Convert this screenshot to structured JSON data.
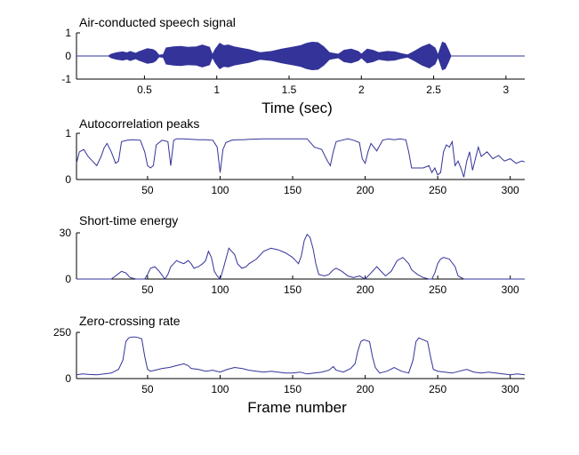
{
  "colors": {
    "series": "#333399",
    "axis": "#000000",
    "background": "#ffffff"
  },
  "chart_data": [
    {
      "type": "line",
      "title": "Air-conducted speech signal",
      "xlabel": "Time (sec)",
      "ylabel": "",
      "xlim": [
        0.03,
        3.13
      ],
      "ylim": [
        -1,
        1
      ],
      "xticks": [
        0.5,
        1,
        1.5,
        2,
        2.5,
        3
      ],
      "xtick_labels": [
        "0.5",
        "1",
        "1.5",
        "2",
        "2.5",
        "3"
      ],
      "yticks": [
        -1,
        0,
        1
      ],
      "ytick_labels": [
        "-1",
        "0",
        "1"
      ],
      "series": [
        {
          "style": "envelope",
          "x": [
            0.03,
            0.25,
            0.27,
            0.31,
            0.35,
            0.38,
            0.4,
            0.44,
            0.46,
            0.52,
            0.56,
            0.58,
            0.6,
            0.63,
            0.65,
            0.7,
            0.75,
            0.8,
            0.86,
            0.9,
            0.95,
            0.97,
            0.99,
            1.02,
            1.05,
            1.08,
            1.12,
            1.16,
            1.22,
            1.3,
            1.38,
            1.45,
            1.52,
            1.58,
            1.62,
            1.66,
            1.7,
            1.74,
            1.78,
            1.84,
            1.88,
            1.93,
            1.98,
            2.0,
            2.04,
            2.08,
            2.12,
            2.18,
            2.23,
            2.28,
            2.32,
            2.37,
            2.42,
            2.47,
            2.51,
            2.53,
            2.56,
            2.58,
            2.6,
            2.62,
            3.13
          ],
          "values": [
            0.0,
            0.0,
            0.08,
            0.15,
            0.18,
            0.14,
            0.2,
            0.12,
            0.18,
            0.32,
            0.28,
            0.2,
            0.04,
            0.06,
            0.35,
            0.4,
            0.42,
            0.38,
            0.4,
            0.48,
            0.38,
            0.06,
            0.3,
            0.55,
            0.45,
            0.48,
            0.4,
            0.35,
            0.28,
            0.15,
            0.2,
            0.3,
            0.38,
            0.45,
            0.55,
            0.6,
            0.58,
            0.4,
            0.15,
            0.08,
            0.25,
            0.3,
            0.2,
            0.08,
            0.3,
            0.25,
            0.15,
            0.2,
            0.18,
            0.1,
            0.05,
            0.22,
            0.4,
            0.52,
            0.35,
            0.05,
            0.6,
            0.55,
            0.3,
            0.0,
            0.0
          ]
        }
      ]
    },
    {
      "type": "line",
      "title": "Autocorrelation peaks",
      "xlabel": "",
      "ylabel": "",
      "xlim": [
        1,
        310
      ],
      "ylim": [
        0,
        1
      ],
      "xticks": [
        50,
        100,
        150,
        200,
        250,
        300
      ],
      "xtick_labels": [
        "50",
        "100",
        "150",
        "200",
        "250",
        "300"
      ],
      "yticks": [
        0,
        1
      ],
      "ytick_labels": [
        "0",
        "1"
      ],
      "series": [
        {
          "x": [
            1,
            3,
            6,
            9,
            12,
            15,
            18,
            20,
            22,
            25,
            28,
            30,
            32,
            36,
            40,
            45,
            48,
            50,
            52,
            54,
            56,
            60,
            64,
            66,
            68,
            70,
            75,
            80,
            85,
            90,
            95,
            98,
            100,
            102,
            104,
            108,
            112,
            116,
            120,
            130,
            140,
            150,
            160,
            165,
            170,
            174,
            176,
            178,
            180,
            184,
            188,
            192,
            196,
            198,
            200,
            202,
            204,
            208,
            212,
            216,
            220,
            224,
            228,
            230,
            232,
            234,
            236,
            240,
            244,
            246,
            248,
            250,
            252,
            254,
            256,
            258,
            260,
            262,
            264,
            266,
            268,
            270,
            272,
            274,
            276,
            278,
            280,
            284,
            288,
            292,
            296,
            300,
            304,
            308,
            310
          ],
          "values": [
            0.35,
            0.6,
            0.65,
            0.5,
            0.4,
            0.3,
            0.5,
            0.68,
            0.78,
            0.6,
            0.35,
            0.4,
            0.82,
            0.85,
            0.86,
            0.85,
            0.6,
            0.3,
            0.25,
            0.3,
            0.75,
            0.85,
            0.82,
            0.3,
            0.85,
            0.88,
            0.88,
            0.87,
            0.86,
            0.86,
            0.85,
            0.7,
            0.15,
            0.65,
            0.8,
            0.85,
            0.86,
            0.86,
            0.87,
            0.88,
            0.88,
            0.88,
            0.88,
            0.7,
            0.65,
            0.4,
            0.3,
            0.6,
            0.82,
            0.85,
            0.88,
            0.85,
            0.8,
            0.45,
            0.35,
            0.6,
            0.78,
            0.62,
            0.85,
            0.88,
            0.86,
            0.88,
            0.86,
            0.6,
            0.25,
            0.25,
            0.25,
            0.25,
            0.3,
            0.15,
            0.25,
            0.1,
            0.15,
            0.6,
            0.75,
            0.7,
            0.82,
            0.3,
            0.4,
            0.25,
            0.05,
            0.4,
            0.6,
            0.2,
            0.45,
            0.7,
            0.5,
            0.6,
            0.45,
            0.52,
            0.4,
            0.45,
            0.35,
            0.4,
            0.38
          ]
        }
      ]
    },
    {
      "type": "line",
      "title": "Short-time energy",
      "xlabel": "",
      "ylabel": "",
      "xlim": [
        1,
        310
      ],
      "ylim": [
        0,
        30
      ],
      "xticks": [
        50,
        100,
        150,
        200,
        250,
        300
      ],
      "xtick_labels": [
        "50",
        "100",
        "150",
        "200",
        "250",
        "300"
      ],
      "yticks": [
        0,
        30
      ],
      "ytick_labels": [
        "0",
        "30"
      ],
      "series": [
        {
          "x": [
            1,
            25,
            28,
            32,
            35,
            38,
            42,
            48,
            50,
            52,
            55,
            58,
            62,
            64,
            66,
            68,
            70,
            72,
            75,
            78,
            80,
            82,
            85,
            88,
            90,
            92,
            94,
            96,
            98,
            100,
            102,
            104,
            106,
            108,
            110,
            112,
            115,
            118,
            120,
            125,
            130,
            135,
            140,
            145,
            150,
            152,
            154,
            156,
            158,
            160,
            162,
            164,
            166,
            168,
            172,
            175,
            178,
            180,
            184,
            188,
            192,
            196,
            200,
            203,
            206,
            208,
            210,
            214,
            218,
            222,
            226,
            228,
            230,
            232,
            236,
            240,
            244,
            246,
            248,
            250,
            252,
            254,
            258,
            262,
            264,
            268,
            272,
            310
          ],
          "values": [
            0,
            0,
            2,
            5,
            4,
            1,
            0,
            0,
            3,
            7,
            8,
            5,
            0,
            3,
            8,
            10,
            12,
            11,
            10,
            12,
            10,
            7,
            8,
            10,
            12,
            18,
            14,
            5,
            2,
            0,
            6,
            13,
            20,
            18,
            16,
            10,
            7,
            8,
            10,
            13,
            18,
            20,
            19,
            17,
            14,
            12,
            10,
            15,
            25,
            29,
            27,
            20,
            10,
            3,
            2,
            3,
            6,
            7,
            5,
            2,
            1,
            2,
            0,
            3,
            6,
            8,
            6,
            2,
            5,
            12,
            14,
            12,
            10,
            6,
            3,
            1,
            0,
            0,
            4,
            10,
            13,
            14,
            13,
            8,
            2,
            0,
            0,
            0
          ]
        }
      ]
    },
    {
      "type": "line",
      "title": "Zero-crossing rate",
      "xlabel": "Frame number",
      "ylabel": "",
      "xlim": [
        1,
        310
      ],
      "ylim": [
        0,
        250
      ],
      "xticks": [
        50,
        100,
        150,
        200,
        250,
        300
      ],
      "xtick_labels": [
        "50",
        "100",
        "150",
        "200",
        "250",
        "300"
      ],
      "yticks": [
        0,
        250
      ],
      "ytick_labels": [
        "0",
        "250"
      ],
      "series": [
        {
          "x": [
            1,
            5,
            10,
            15,
            20,
            25,
            30,
            33,
            35,
            37,
            39,
            42,
            46,
            48,
            50,
            52,
            55,
            60,
            65,
            70,
            75,
            78,
            80,
            85,
            90,
            95,
            100,
            105,
            110,
            115,
            120,
            125,
            130,
            135,
            140,
            145,
            150,
            155,
            160,
            165,
            170,
            175,
            178,
            180,
            185,
            190,
            193,
            195,
            197,
            199,
            203,
            205,
            207,
            210,
            215,
            220,
            225,
            230,
            233,
            235,
            237,
            240,
            243,
            245,
            247,
            250,
            255,
            260,
            265,
            270,
            275,
            280,
            285,
            290,
            295,
            300,
            305,
            310
          ],
          "values": [
            20,
            25,
            22,
            20,
            25,
            30,
            50,
            100,
            200,
            220,
            225,
            225,
            215,
            120,
            50,
            40,
            45,
            55,
            60,
            70,
            80,
            70,
            55,
            50,
            40,
            45,
            35,
            50,
            60,
            55,
            45,
            40,
            35,
            40,
            35,
            30,
            30,
            35,
            25,
            30,
            35,
            45,
            65,
            45,
            35,
            55,
            80,
            150,
            200,
            210,
            200,
            120,
            60,
            30,
            40,
            60,
            40,
            30,
            100,
            200,
            220,
            210,
            200,
            120,
            50,
            40,
            35,
            30,
            40,
            50,
            35,
            30,
            35,
            30,
            25,
            20,
            25,
            20
          ]
        }
      ]
    }
  ]
}
